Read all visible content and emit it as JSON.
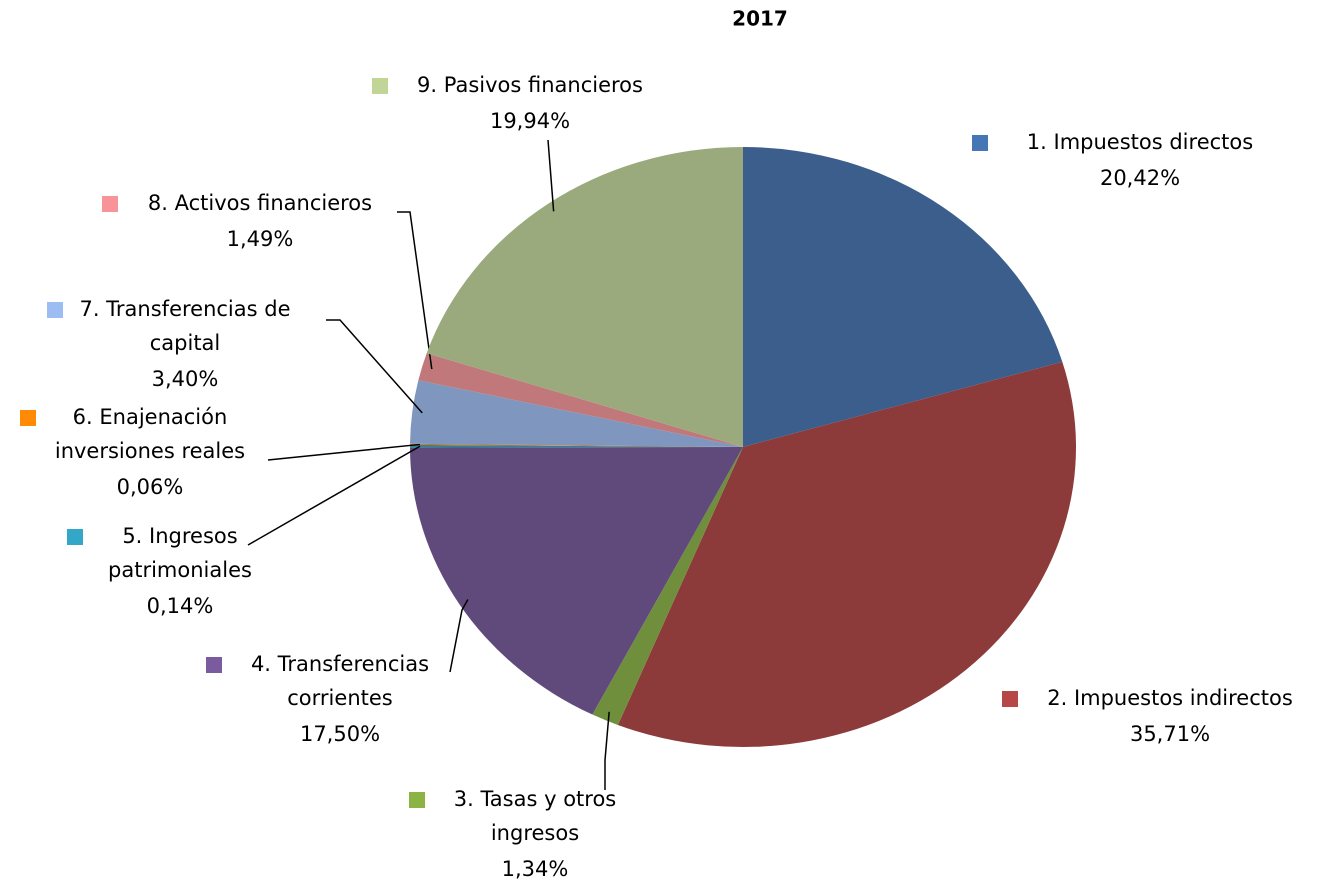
{
  "chart_data": {
    "type": "pie",
    "title": "2017",
    "categories": [
      "1. Impuestos directos",
      "2. Impuestos indirectos",
      "3. Tasas y otros ingresos",
      "4. Transferencias corrientes",
      "5. Ingresos patrimoniales",
      "6. Enajenación inversiones reales",
      "7. Transferencias de capital",
      "8. Activos financieros",
      "9. Pasivos financieros"
    ],
    "values": [
      20.42,
      35.71,
      1.34,
      17.5,
      0.14,
      0.06,
      3.4,
      1.49,
      19.94
    ],
    "value_labels": [
      "20,42%",
      "35,71%",
      "1,34%",
      "17,50%",
      "0,14%",
      "0,06%",
      "3,40%",
      "1,49%",
      "19,94%"
    ],
    "colors": [
      "#3b5e8c",
      "#8c3a3a",
      "#708f3d",
      "#604a7b",
      "#2f849c",
      "#e0700f",
      "#7f96bf",
      "#c0787a",
      "#9baa7c"
    ]
  }
}
